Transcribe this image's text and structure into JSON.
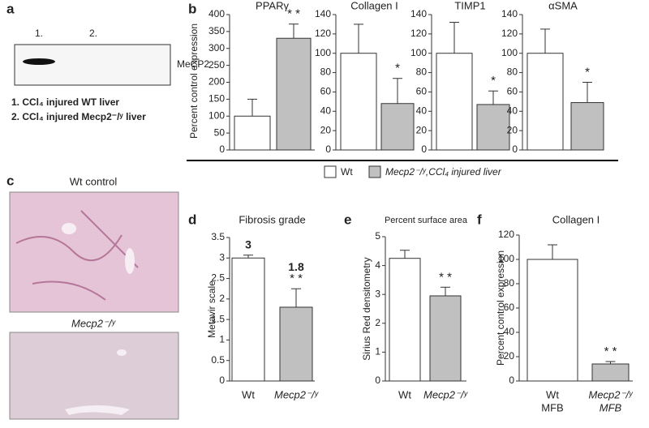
{
  "panel_labels": [
    "a",
    "b",
    "c",
    "d",
    "e",
    "f"
  ],
  "blot": {
    "lanes": [
      "1.",
      "2."
    ],
    "protein": "MeCP2",
    "key": [
      "1.  CCl₄ injured WT liver",
      "2.  CCl₄ injured Mecp2⁻/ʸ liver"
    ]
  },
  "micrographs": [
    "Wt control",
    "Mecp2⁻/ʸ"
  ],
  "panel_b": {
    "ylabel": "Percent control expression",
    "legend": [
      {
        "name": "Wt",
        "color": "#ffffff"
      },
      {
        "name": "Mecp2⁻/ʸ,CCl₄ injured liver",
        "color": "#c0c0c0"
      }
    ]
  },
  "chart_data": [
    {
      "type": "bar",
      "title": "PPARγ",
      "categories": [
        null,
        null
      ],
      "colors": [
        "#ffffff",
        "#c0c0c0"
      ],
      "values": [
        100,
        330
      ],
      "errors": [
        50,
        42
      ],
      "ylim": [
        0,
        400
      ],
      "yticks": [
        0,
        50,
        100,
        150,
        200,
        250,
        300,
        350,
        400
      ],
      "annotation": "* *"
    },
    {
      "type": "bar",
      "title": "Collagen I",
      "categories": [
        null,
        null
      ],
      "colors": [
        "#ffffff",
        "#c0c0c0"
      ],
      "values": [
        100,
        48
      ],
      "errors": [
        30,
        26
      ],
      "ylim": [
        0,
        140
      ],
      "yticks": [
        0,
        20,
        40,
        60,
        80,
        100,
        120,
        140
      ],
      "annotation": "*"
    },
    {
      "type": "bar",
      "title": "TIMP1",
      "categories": [
        null,
        null
      ],
      "colors": [
        "#ffffff",
        "#c0c0c0"
      ],
      "values": [
        100,
        47
      ],
      "errors": [
        32,
        14
      ],
      "ylim": [
        0,
        140
      ],
      "yticks": [
        0,
        20,
        40,
        60,
        80,
        100,
        120,
        140
      ],
      "annotation": "*"
    },
    {
      "type": "bar",
      "title": "αSMA",
      "categories": [
        null,
        null
      ],
      "colors": [
        "#ffffff",
        "#c0c0c0"
      ],
      "values": [
        100,
        49
      ],
      "errors": [
        25,
        21
      ],
      "ylim": [
        0,
        140
      ],
      "yticks": [
        0,
        20,
        40,
        60,
        80,
        100,
        120,
        140
      ],
      "annotation": "*"
    },
    {
      "type": "bar",
      "title": "Fibrosis grade",
      "ylabel": "Metavir scale",
      "categories": [
        [
          "Wt"
        ],
        [
          "Mecp2⁻/ʸ"
        ]
      ],
      "colors": [
        "#ffffff",
        "#c0c0c0"
      ],
      "values": [
        3,
        1.8
      ],
      "value_labels": [
        "3",
        "1.8"
      ],
      "errors": [
        0.07,
        0.45
      ],
      "ylim": [
        0,
        3.5
      ],
      "yticks": [
        0,
        0.5,
        1,
        1.5,
        2,
        2.5,
        3,
        3.5
      ],
      "annotation": "* *"
    },
    {
      "type": "bar",
      "title": "Percent surface area",
      "ylabel": "Sirius Red densitometry",
      "categories": [
        [
          "Wt"
        ],
        [
          "Mecp2⁻/ʸ"
        ]
      ],
      "colors": [
        "#ffffff",
        "#c0c0c0"
      ],
      "values": [
        4.25,
        2.95
      ],
      "errors": [
        0.28,
        0.3
      ],
      "ylim": [
        0,
        5
      ],
      "yticks": [
        0,
        1,
        2,
        3,
        4,
        5
      ],
      "annotation": "* *"
    },
    {
      "type": "bar",
      "title": "Collagen I",
      "ylabel": "Percent control expression",
      "categories": [
        [
          "Wt",
          "MFB"
        ],
        [
          "Mecp2⁻/ʸ",
          "MFB"
        ]
      ],
      "colors": [
        "#ffffff",
        "#c0c0c0"
      ],
      "values": [
        100,
        14
      ],
      "errors": [
        12,
        2
      ],
      "ylim": [
        0,
        120
      ],
      "yticks": [
        0,
        20,
        40,
        60,
        80,
        100,
        120
      ],
      "annotation": "* *"
    }
  ]
}
